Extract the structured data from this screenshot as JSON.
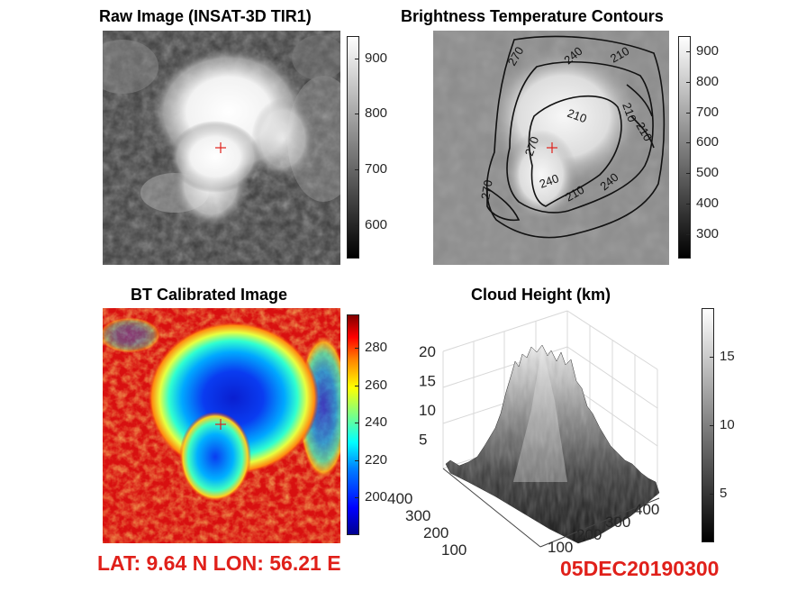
{
  "figure": {
    "footer": {
      "location": "LAT: 9.64 N  LON: 56.21 E",
      "datetime": "05DEC20190300"
    }
  },
  "chart_data": [
    {
      "type": "heatmap",
      "title": "Raw Image (INSAT-3D TIR1)",
      "colormap": "gray",
      "colorbar": {
        "range": [
          540,
          940
        ],
        "ticks": [
          600,
          700,
          800,
          900
        ]
      },
      "marker": "center-cross",
      "marker_color": "#e0201a"
    },
    {
      "type": "heatmap",
      "title": "Brightness Temperature Contours",
      "colormap": "gray",
      "contour_levels": [
        210,
        240,
        270
      ],
      "contour_labels": [
        "270",
        "240",
        "210",
        "210",
        "210",
        "270",
        "210",
        "240",
        "270",
        "240",
        "210"
      ],
      "colorbar": {
        "range": [
          220,
          950
        ],
        "ticks": [
          300,
          400,
          500,
          600,
          700,
          800,
          900
        ]
      },
      "marker": "center-cross",
      "marker_color": "#e0201a"
    },
    {
      "type": "heatmap",
      "title": "BT Calibrated Image",
      "colormap": "jet",
      "colorbar": {
        "range": [
          180,
          298
        ],
        "ticks": [
          200,
          220,
          240,
          260,
          280
        ]
      },
      "marker": "center-cross",
      "marker_color": "#e0201a"
    },
    {
      "type": "surface",
      "title": "Cloud Height (km)",
      "colormap": "gray",
      "zlim": [
        0,
        20
      ],
      "zticks": [
        5,
        10,
        15,
        20
      ],
      "xticks": [
        100,
        200,
        300,
        400
      ],
      "yticks": [
        100,
        200,
        300,
        400
      ],
      "colorbar": {
        "range": [
          1.5,
          18.5
        ],
        "ticks": [
          5,
          10,
          15
        ]
      },
      "peak_height_km": 19
    }
  ]
}
